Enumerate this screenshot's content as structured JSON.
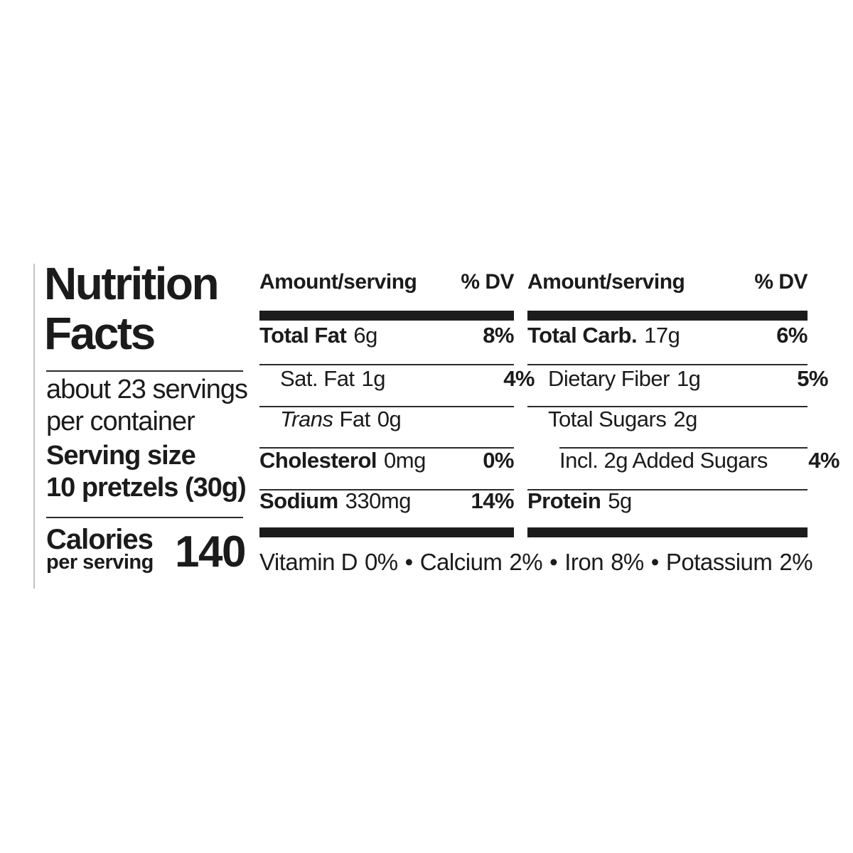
{
  "label": {
    "title_line1": "Nutrition",
    "title_line2": "Facts",
    "servings_line1": "about 23 servings",
    "servings_line2": "per container",
    "serving_size_label": "Serving size",
    "serving_size_value": "10 pretzels (30g)",
    "calories_label": "Calories",
    "calories_sublabel": "per serving",
    "calories_value": "140",
    "col_header_amount": "Amount/serving",
    "col_header_dv": "% DV",
    "mid_rows": [
      {
        "name": "Total Fat",
        "amount": "6g",
        "dv": "8%"
      },
      {
        "name": "Sat. Fat",
        "amount": "1g",
        "dv": "4%"
      },
      {
        "name_italic": "Trans",
        "name": "Fat",
        "amount": "0g",
        "dv": ""
      },
      {
        "name": "Cholesterol",
        "amount": "0mg",
        "dv": "0%"
      },
      {
        "name": "Sodium",
        "amount": "330mg",
        "dv": "14%"
      }
    ],
    "right_rows": [
      {
        "name": "Total Carb.",
        "amount": "17g",
        "dv": "6%"
      },
      {
        "name": "Dietary Fiber",
        "amount": "1g",
        "dv": "5%"
      },
      {
        "name": "Total Sugars",
        "amount": "2g",
        "dv": ""
      },
      {
        "name": "Incl. 2g Added Sugars",
        "amount": "",
        "dv": "4%"
      },
      {
        "name": "Protein",
        "amount": "5g",
        "dv": ""
      }
    ],
    "micro_separator": "•",
    "micronutrients": [
      {
        "name": "Vitamin D",
        "dv": "0%"
      },
      {
        "name": "Calcium",
        "dv": "2%"
      },
      {
        "name": "Iron",
        "dv": "8%"
      },
      {
        "name": "Potassium",
        "dv": "2%"
      }
    ],
    "colors": {
      "text": "#1b1b1b",
      "thick_bar": "#1c1c1c",
      "thin_rule": "#2b2b2b",
      "edge_line": "#c2c2c6",
      "background": "#ffffff"
    }
  }
}
